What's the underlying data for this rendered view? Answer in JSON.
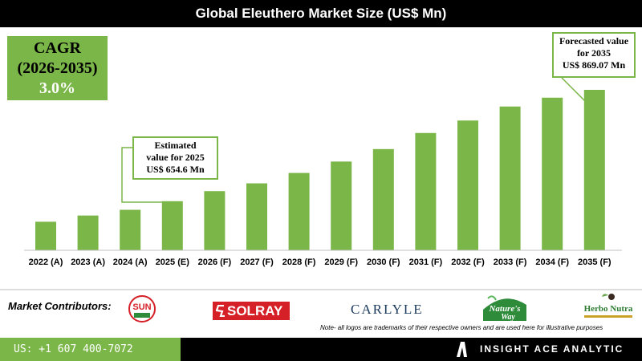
{
  "title": "Global Eleuthero Market Size (US$ Mn)",
  "cagr": {
    "line1": "CAGR",
    "line2": "(2026-2035)",
    "line3": "3.0%"
  },
  "callouts": {
    "c2025": {
      "line1": "Estimated",
      "line2": "value for 2025",
      "line3": "US$ 654.6 Mn"
    },
    "c2035": {
      "line1": "Forecasted value",
      "line2": "for 2035",
      "line3": "US$ 869.07 Mn"
    }
  },
  "colors": {
    "accent": "#7ab648",
    "dark": "#000000"
  },
  "chart_data": {
    "type": "bar",
    "title": "Global Eleuthero Market Size (US$ Mn)",
    "categories": [
      "2022 (A)",
      "2023 (A)",
      "2024 (A)",
      "2025 (E)",
      "2026 (F)",
      "2027 (F)",
      "2028 (F)",
      "2029 (F)",
      "2030 (F)",
      "2031 (F)",
      "2032 (F)",
      "2033 (F)",
      "2034 (F)",
      "2035 (F)"
    ],
    "values": [
      615,
      627,
      638,
      654.6,
      674,
      689,
      709,
      731,
      755,
      786,
      810,
      837,
      854,
      869.07
    ],
    "ylim": [
      560,
      900
    ],
    "grid": false,
    "color": "#7ab648"
  },
  "footer": {
    "contributors_label": "Market Contributors:",
    "phone": "US: +1 607 400-7072",
    "brand": "INSIGHT ACE ANALYTIC",
    "note": "Note- all logos are trademarks of their respective owners and are used here for illustrative purposes"
  },
  "logos": {
    "sun": "SUN",
    "solray": "SOLRAY",
    "carlyle": "CARLYLE",
    "natures_way_1": "Nature's",
    "natures_way_2": "Way",
    "herbo": "Herbo Nutra"
  }
}
